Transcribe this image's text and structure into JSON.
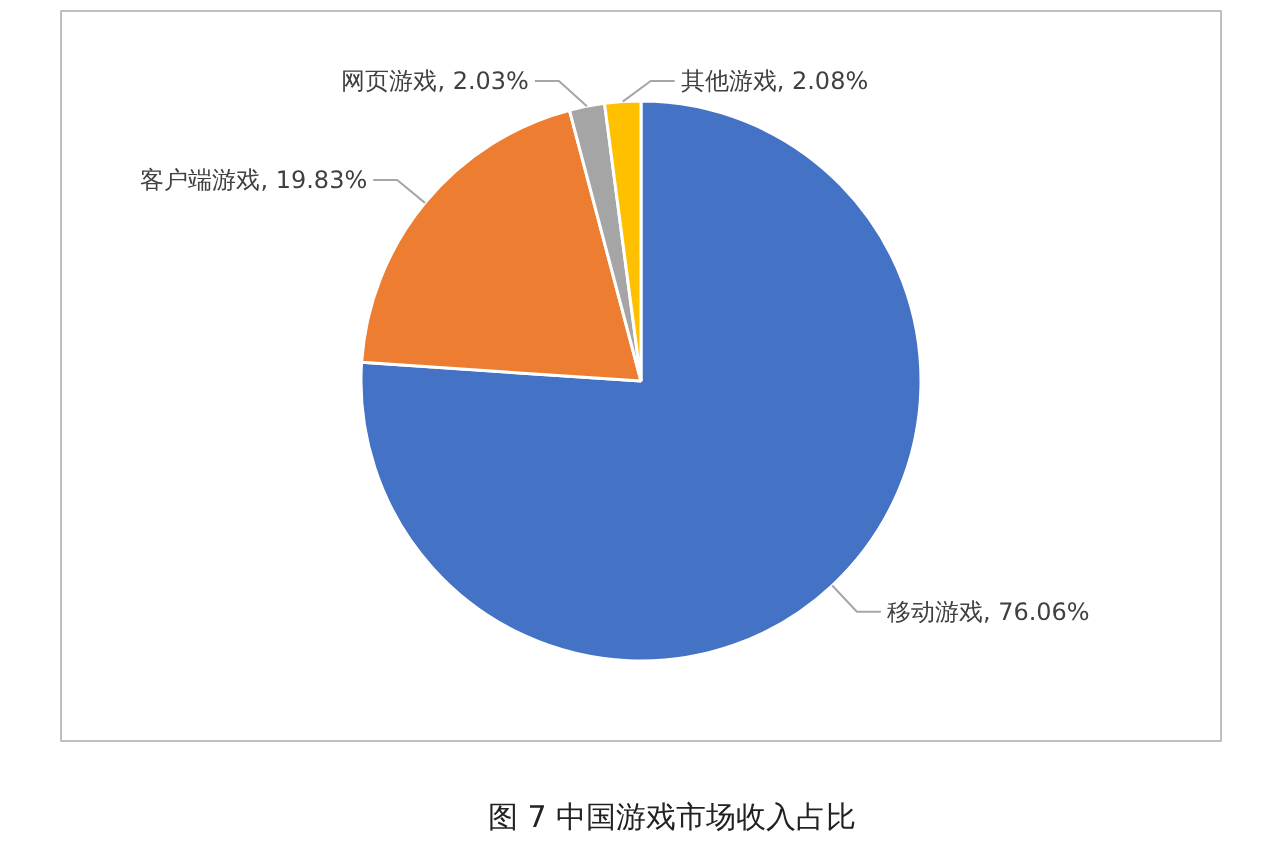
{
  "chart_data": {
    "type": "pie",
    "title": "图 7 中国游戏市场收入占比",
    "categories": [
      "移动游戏",
      "客户端游戏",
      "网页游戏",
      "其他游戏"
    ],
    "values": [
      76.06,
      19.83,
      2.03,
      2.08
    ],
    "colors": [
      "#4472c4",
      "#ed7d31",
      "#a5a5a5",
      "#ffc000"
    ],
    "value_labels": [
      "76.06%",
      "19.83%",
      "2.03%",
      "2.08%"
    ]
  }
}
